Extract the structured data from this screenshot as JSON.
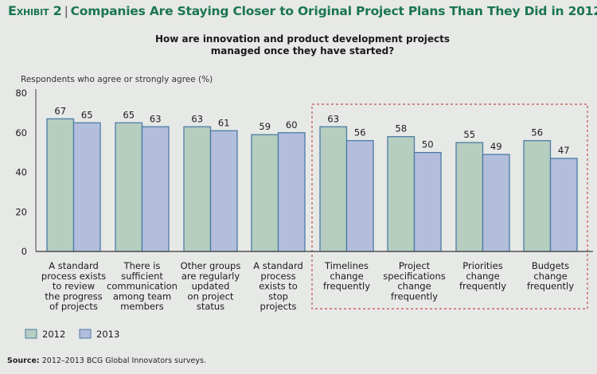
{
  "header": {
    "exhibit_label": "Exhibit 2",
    "title": "Companies Are Staying Closer to Original Project Plans Than They Did in 2012"
  },
  "source": {
    "label": "Source:",
    "text": "2012–2013 BCG Global Innovators surveys."
  },
  "colors": {
    "series_2012": "#b5cec0",
    "series_2013": "#b2bedc",
    "bar_border": "#4d7ba3",
    "title": "#1a7551",
    "highlight_box": "#c0504d"
  },
  "chart_data": {
    "type": "bar",
    "title": "How are innovation and product development projects managed once they have started?",
    "title_lines": [
      "How are innovation and product development projects",
      "managed once they have started?"
    ],
    "ylabel": "Respondents who agree or strongly agree (%)",
    "xlabel": "",
    "ylim": [
      0,
      80
    ],
    "yticks": [
      0,
      20,
      40,
      60,
      80
    ],
    "grid": false,
    "legend_position": "bottom-left",
    "categories": [
      [
        "A standard",
        "process exists",
        "to review",
        "the progress",
        "of projects"
      ],
      [
        "There is",
        "sufficient",
        "communication",
        "among team",
        "members"
      ],
      [
        "Other groups",
        "are regularly",
        "updated",
        "on project",
        "status"
      ],
      [
        "A standard",
        "process",
        "exists to",
        "stop",
        "projects"
      ],
      [
        "Timelines",
        "change",
        "frequently"
      ],
      [
        "Project",
        "specifications",
        "change",
        "frequently"
      ],
      [
        "Priorities",
        "change",
        "frequently"
      ],
      [
        "Budgets",
        "change",
        "frequently"
      ]
    ],
    "series": [
      {
        "name": "2012",
        "values": [
          67,
          65,
          63,
          59,
          63,
          58,
          55,
          56
        ]
      },
      {
        "name": "2013",
        "values": [
          65,
          63,
          61,
          60,
          56,
          50,
          49,
          47
        ]
      }
    ],
    "annotations": [
      {
        "type": "dashed-box",
        "covers_categories": [
          4,
          5,
          6,
          7
        ]
      }
    ]
  }
}
